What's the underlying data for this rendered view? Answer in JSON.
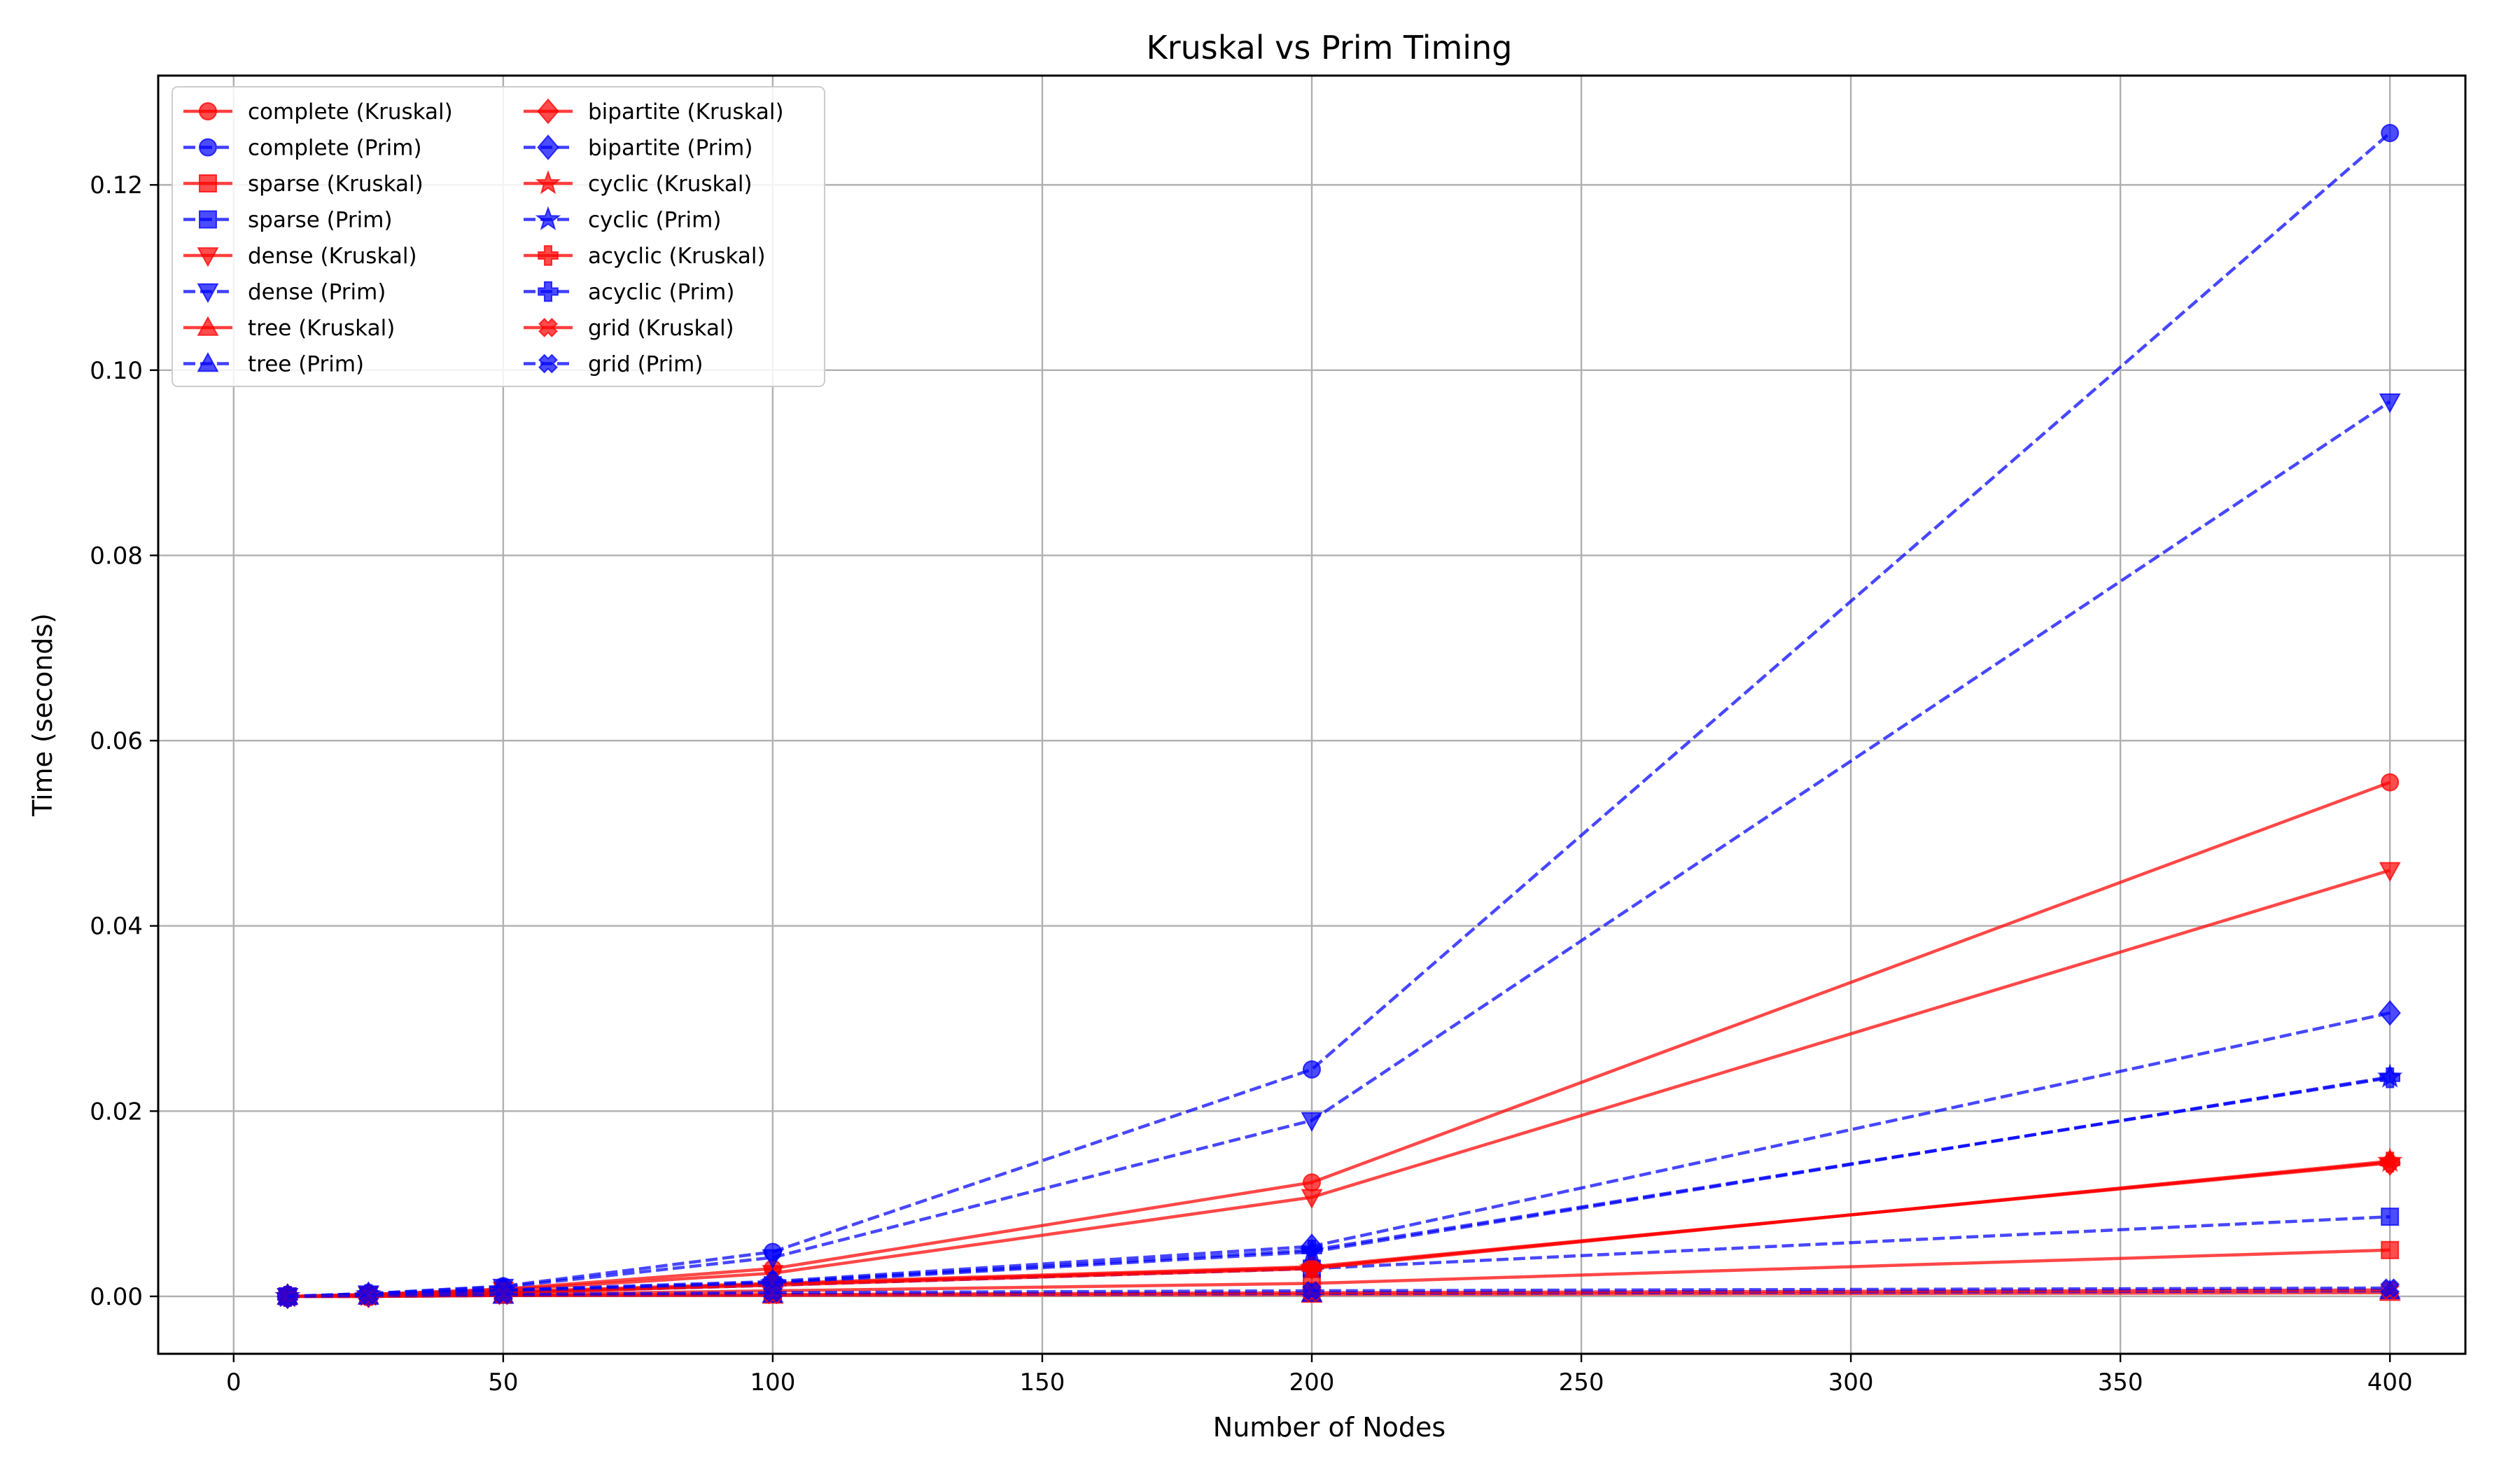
{
  "chart_data": {
    "type": "line",
    "title": "Kruskal vs Prim Timing",
    "xlabel": "Number of Nodes",
    "ylabel": "Time (seconds)",
    "xlim": [
      -14,
      414
    ],
    "ylim": [
      -0.0062,
      0.1318
    ],
    "x_ticks": [
      0,
      50,
      100,
      150,
      200,
      250,
      300,
      350,
      400
    ],
    "x_tick_labels": [
      "0",
      "50",
      "100",
      "150",
      "200",
      "250",
      "300",
      "350",
      "400"
    ],
    "y_ticks": [
      0.0,
      0.02,
      0.04,
      0.06,
      0.08,
      0.1,
      0.12
    ],
    "y_tick_labels": [
      "0.00",
      "0.02",
      "0.04",
      "0.06",
      "0.08",
      "0.10",
      "0.12"
    ],
    "grid": true,
    "legend_position": "top-left",
    "legend_columns": 2,
    "colors": {
      "kruskal": "#ff0000",
      "prim": "#0000ff"
    },
    "x": [
      10,
      25,
      50,
      100,
      200,
      400
    ],
    "series": [
      {
        "name": "complete (Kruskal)",
        "algo": "kruskal",
        "marker": "circle",
        "values": [
          0.0,
          0.0002,
          0.0008,
          0.003,
          0.0123,
          0.0555
        ]
      },
      {
        "name": "complete (Prim)",
        "algo": "prim",
        "marker": "circle",
        "values": [
          0.0,
          0.0003,
          0.0011,
          0.0048,
          0.0245,
          0.1256
        ]
      },
      {
        "name": "sparse (Kruskal)",
        "algo": "kruskal",
        "marker": "square",
        "values": [
          0.0,
          0.0001,
          0.0002,
          0.0006,
          0.0014,
          0.005
        ]
      },
      {
        "name": "sparse (Prim)",
        "algo": "prim",
        "marker": "square",
        "values": [
          0.0,
          0.0001,
          0.0004,
          0.0012,
          0.003,
          0.0086
        ]
      },
      {
        "name": "dense (Kruskal)",
        "algo": "kruskal",
        "marker": "triangle-down",
        "values": [
          0.0,
          0.0002,
          0.0007,
          0.0025,
          0.0107,
          0.046
        ]
      },
      {
        "name": "dense (Prim)",
        "algo": "prim",
        "marker": "triangle-down",
        "values": [
          0.0,
          0.0003,
          0.001,
          0.0042,
          0.019,
          0.0966
        ]
      },
      {
        "name": "tree (Kruskal)",
        "algo": "kruskal",
        "marker": "triangle-up",
        "values": [
          0.0,
          0.0,
          0.0001,
          0.0001,
          0.0002,
          0.0004
        ]
      },
      {
        "name": "tree (Prim)",
        "algo": "prim",
        "marker": "triangle-up",
        "values": [
          0.0,
          0.0,
          0.0001,
          0.0002,
          0.0003,
          0.0006
        ]
      },
      {
        "name": "bipartite (Kruskal)",
        "algo": "kruskal",
        "marker": "diamond",
        "values": [
          0.0,
          0.0001,
          0.0005,
          0.0014,
          0.0032,
          0.0144
        ]
      },
      {
        "name": "bipartite (Prim)",
        "algo": "prim",
        "marker": "diamond",
        "values": [
          0.0,
          0.0002,
          0.0007,
          0.0016,
          0.0054,
          0.0306
        ]
      },
      {
        "name": "cyclic (Kruskal)",
        "algo": "kruskal",
        "marker": "star",
        "values": [
          0.0,
          0.0001,
          0.0004,
          0.0012,
          0.003,
          0.0146
        ]
      },
      {
        "name": "cyclic (Prim)",
        "algo": "prim",
        "marker": "star",
        "values": [
          0.0,
          0.0002,
          0.0006,
          0.0014,
          0.0048,
          0.0237
        ]
      },
      {
        "name": "acyclic (Kruskal)",
        "algo": "kruskal",
        "marker": "plus",
        "values": [
          0.0,
          0.0001,
          0.0004,
          0.0013,
          0.0031,
          0.0145
        ]
      },
      {
        "name": "acyclic (Prim)",
        "algo": "prim",
        "marker": "plus",
        "values": [
          0.0,
          0.0002,
          0.0006,
          0.0015,
          0.005,
          0.0236
        ]
      },
      {
        "name": "grid (Kruskal)",
        "algo": "kruskal",
        "marker": "x",
        "values": [
          0.0,
          0.0,
          0.0001,
          0.0002,
          0.0004,
          0.0007
        ]
      },
      {
        "name": "grid (Prim)",
        "algo": "prim",
        "marker": "x",
        "values": [
          0.0,
          0.0001,
          0.0002,
          0.0004,
          0.0006,
          0.0009
        ]
      }
    ]
  }
}
